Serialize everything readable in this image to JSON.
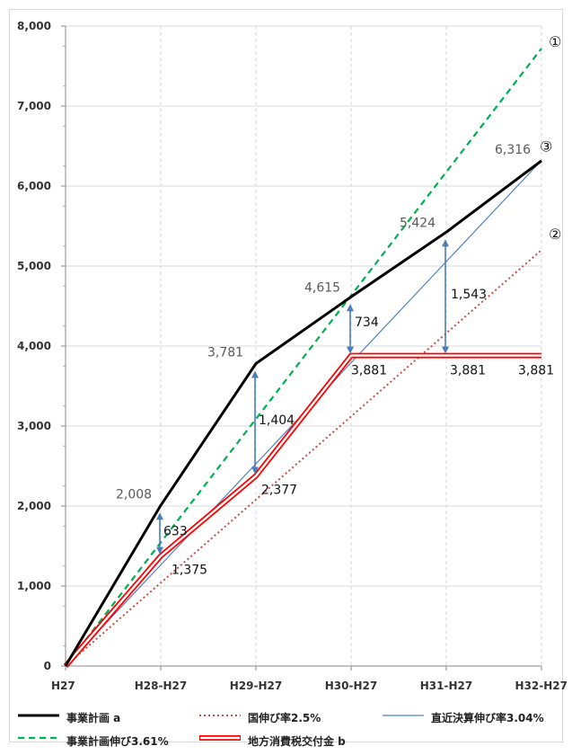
{
  "chart_data": {
    "type": "line",
    "categories": [
      "H27",
      "H28-H27",
      "H29-H27",
      "H30-H27",
      "H31-H27",
      "H32-H27"
    ],
    "ylim": [
      0,
      8000
    ],
    "y_ticks": [
      0,
      1000,
      2000,
      3000,
      4000,
      5000,
      6000,
      7000,
      8000
    ],
    "y_tick_labels": [
      "0",
      "1,000",
      "2,000",
      "3,000",
      "4,000",
      "5,000",
      "6,000",
      "7,000",
      "8,000"
    ],
    "grid": true,
    "legend_position": "bottom",
    "series": [
      {
        "key": "a",
        "name": "事業計画 a",
        "values": [
          0,
          2008,
          3781,
          4615,
          5424,
          6316
        ],
        "color": "#000000",
        "style": "solid-thick"
      },
      {
        "key": "nat",
        "name": "国伸び率2.5%",
        "values": [
          0,
          1040,
          2080,
          3120,
          4160,
          5200
        ],
        "color": "#c0504d",
        "style": "dotted"
      },
      {
        "key": "recent",
        "name": "直近決算伸び率3.04%",
        "values": [
          0,
          1264,
          2528,
          3792,
          5056,
          6320
        ],
        "color": "#4f81bd",
        "style": "solid-thin"
      },
      {
        "key": "plan",
        "name": "事業計画伸び3.61%",
        "values": [
          0,
          1544,
          3088,
          4632,
          6176,
          7720
        ],
        "color": "#00b050",
        "style": "dashed"
      },
      {
        "key": "b",
        "name": "地方消費税交付金 b",
        "values": [
          0,
          1375,
          2377,
          3881,
          3881,
          3881
        ],
        "color": "#ff0000",
        "style": "double-red"
      }
    ],
    "point_labels": {
      "a": [
        "",
        "2,008",
        "3,781",
        "4,615",
        "5,424",
        "6,316"
      ],
      "b": [
        "",
        "1,375",
        "2,377",
        "3,881",
        "3,881",
        "3,881"
      ]
    },
    "differences": [
      {
        "category": "H28-H27",
        "value": "633"
      },
      {
        "category": "H29-H27",
        "value": "1,404"
      },
      {
        "category": "H30-H27",
        "value": "734"
      },
      {
        "category": "H31-H27",
        "value": "1,543"
      }
    ],
    "end_markers": [
      {
        "series": "plan",
        "text": "①"
      },
      {
        "series": "nat",
        "text": "②"
      },
      {
        "series": "recent",
        "text": "③"
      }
    ]
  }
}
